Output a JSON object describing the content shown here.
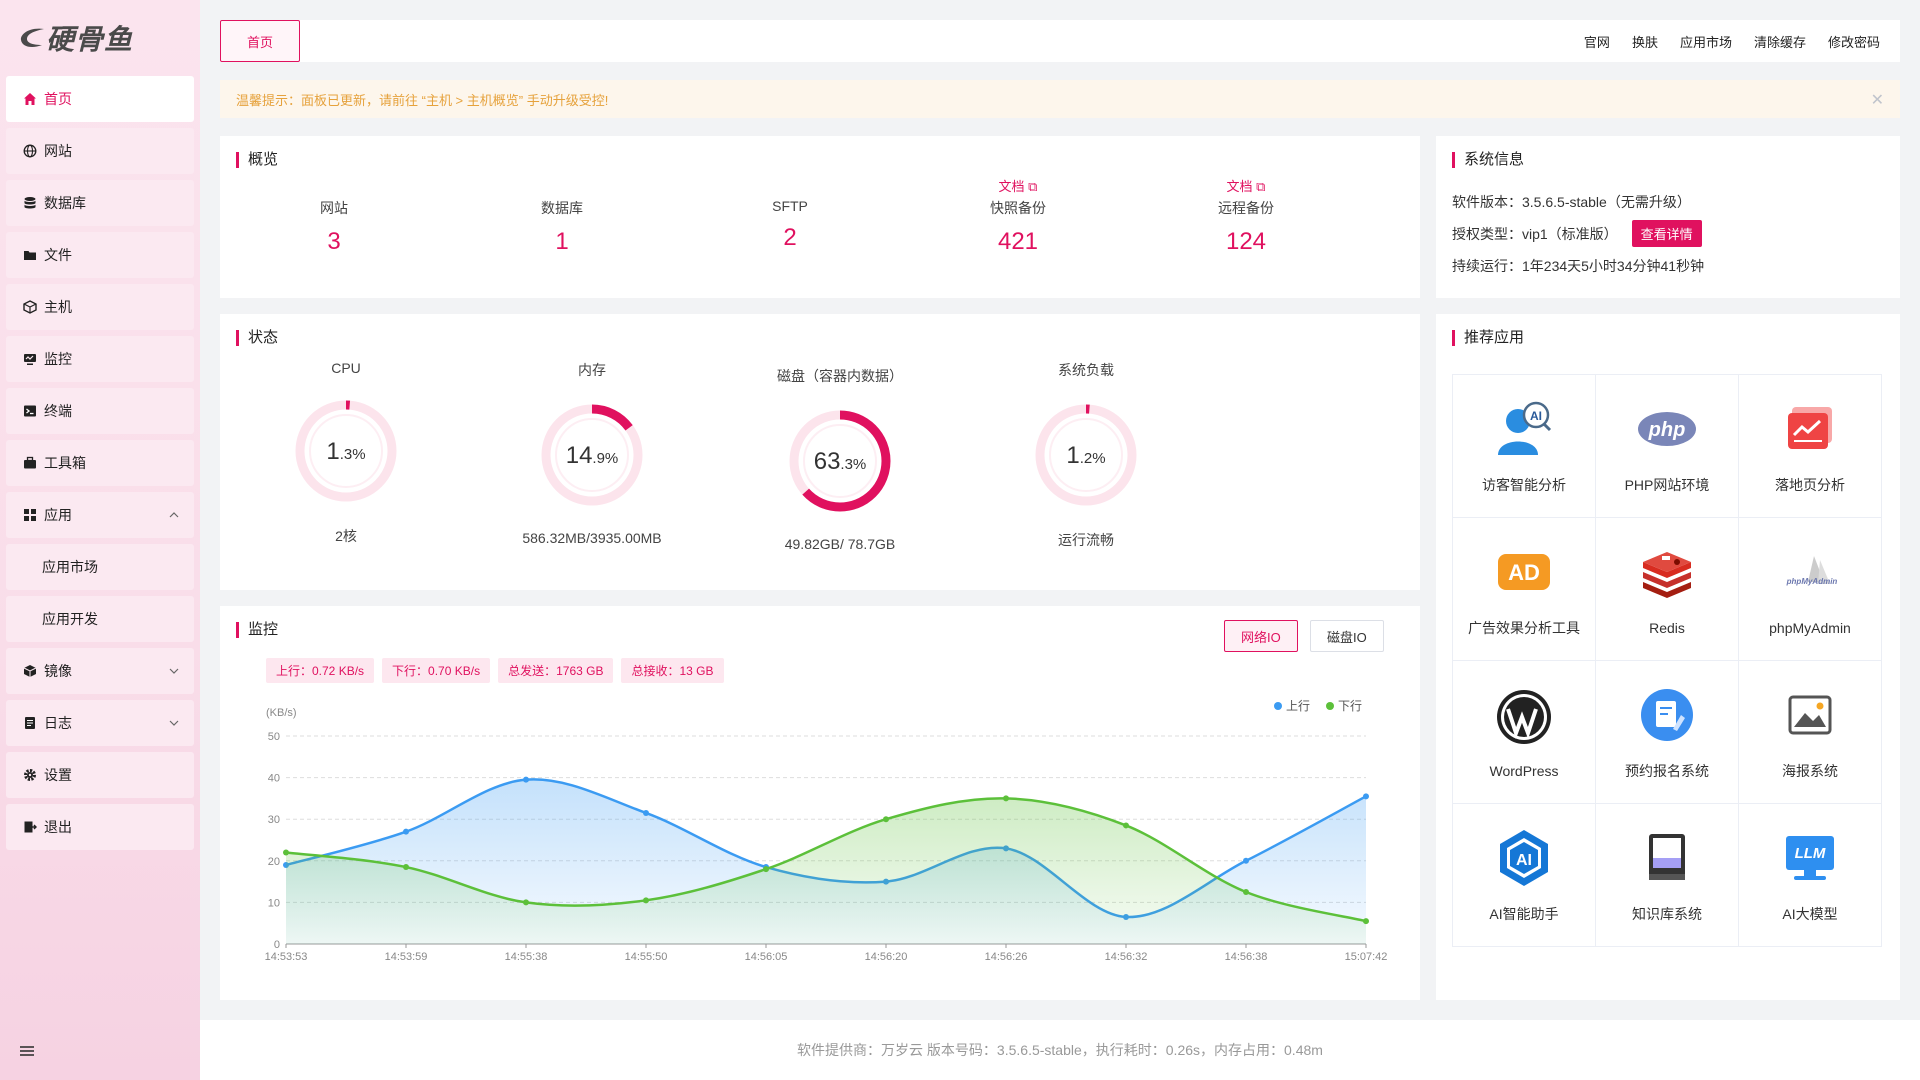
{
  "logo": {
    "text": "硬骨鱼"
  },
  "sidebar": {
    "items": [
      {
        "label": "首页",
        "icon": "home-icon",
        "active": true
      },
      {
        "label": "网站",
        "icon": "globe-icon"
      },
      {
        "label": "数据库",
        "icon": "database-icon"
      },
      {
        "label": "文件",
        "icon": "folder-icon"
      },
      {
        "label": "主机",
        "icon": "server-icon"
      },
      {
        "label": "监控",
        "icon": "monitor-icon"
      },
      {
        "label": "终端",
        "icon": "terminal-icon"
      },
      {
        "label": "工具箱",
        "icon": "toolbox-icon"
      },
      {
        "label": "应用",
        "icon": "apps-icon",
        "expanded": true
      },
      {
        "label": "应用市场",
        "sub": true
      },
      {
        "label": "应用开发",
        "sub": true
      },
      {
        "label": "镜像",
        "icon": "image-box-icon"
      },
      {
        "label": "日志",
        "icon": "log-icon"
      },
      {
        "label": "设置",
        "icon": "gear-icon"
      },
      {
        "label": "退出",
        "icon": "logout-icon"
      }
    ]
  },
  "topbar": {
    "tab": "首页",
    "links": [
      "官网",
      "换肤",
      "应用市场",
      "清除缓存",
      "修改密码"
    ]
  },
  "notice": {
    "text": "温馨提示：面板已更新，请前往 “主机 > 主机概览” 手动升级受控!"
  },
  "overview": {
    "title": "概览",
    "doc_label": "文档",
    "items": [
      {
        "label": "网站",
        "value": "3"
      },
      {
        "label": "数据库",
        "value": "1"
      },
      {
        "label": "SFTP",
        "value": "2"
      },
      {
        "label": "快照备份",
        "value": "421"
      },
      {
        "label": "远程备份",
        "value": "124"
      }
    ]
  },
  "sysinfo": {
    "title": "系统信息",
    "version": "软件版本：3.5.6.5-stable（无需升级）",
    "license": "授权类型：vip1（标准版）",
    "detail_button": "查看详情",
    "uptime": "持续运行：1年234天5小时34分钟41秒钟"
  },
  "status": {
    "title": "状态",
    "gauges": [
      {
        "label": "CPU",
        "value_main": "1",
        "value_dec": ".3",
        "percent": 1.3,
        "sub": "2核"
      },
      {
        "label": "内存",
        "value_main": "14",
        "value_dec": ".9",
        "percent": 14.9,
        "sub": "586.32MB/3935.00MB"
      },
      {
        "label": "磁盘（容器内数据）",
        "value_main": "63",
        "value_dec": ".3",
        "percent": 63.3,
        "sub": "49.82GB/ 78.7GB"
      },
      {
        "label": "系统负载",
        "value_main": "1",
        "value_dec": ".2",
        "percent": 1.2,
        "sub": "运行流畅"
      }
    ],
    "percent_sign": "%"
  },
  "monitor": {
    "title": "监控",
    "buttons": [
      "网络IO",
      "磁盘IO"
    ],
    "tags": [
      "上行：0.72 KB/s",
      "下行：0.70 KB/s",
      "总发送：1763 GB",
      "总接收：13 GB"
    ]
  },
  "chart_data": {
    "type": "area",
    "ylabel": "(KB/s)",
    "ylim": [
      0,
      50
    ],
    "yticks": [
      0,
      10,
      20,
      30,
      40,
      50
    ],
    "categories": [
      "14:53:53",
      "14:53:59",
      "14:55:38",
      "14:55:50",
      "14:56:05",
      "14:56:20",
      "14:56:26",
      "14:56:32",
      "14:56:38",
      "15:07:42"
    ],
    "series": [
      {
        "name": "上行",
        "color": "#3b9bf2",
        "values": [
          19,
          27,
          39.5,
          31.5,
          18.5,
          15,
          23,
          6.5,
          20,
          35.5
        ]
      },
      {
        "name": "下行",
        "color": "#5cc03a",
        "values": [
          22,
          18.5,
          10,
          10.5,
          18,
          30,
          35,
          28.5,
          12.5,
          5.5
        ]
      }
    ],
    "legend": "top-right",
    "grid": true
  },
  "apps": {
    "title": "推荐应用",
    "items": [
      {
        "name": "访客智能分析",
        "icon": "visitor-ai-icon",
        "badge": "AI"
      },
      {
        "name": "PHP网站环境",
        "icon": "php-icon",
        "badge": "php"
      },
      {
        "name": "落地页分析",
        "icon": "landing-chart-icon"
      },
      {
        "name": "广告效果分析工具",
        "icon": "ad-icon",
        "badge": "AD"
      },
      {
        "name": "Redis",
        "icon": "redis-icon"
      },
      {
        "name": "phpMyAdmin",
        "icon": "phpmyadmin-icon",
        "badge": "phpMyAdmin"
      },
      {
        "name": "WordPress",
        "icon": "wordpress-icon"
      },
      {
        "name": "预约报名系统",
        "icon": "reservation-icon"
      },
      {
        "name": "海报系统",
        "icon": "poster-icon"
      },
      {
        "name": "AI智能助手",
        "icon": "ai-assistant-icon",
        "badge": "AI"
      },
      {
        "name": "知识库系统",
        "icon": "knowledge-base-icon"
      },
      {
        "name": "AI大模型",
        "icon": "llm-icon",
        "badge": "LLM"
      }
    ]
  },
  "footer": {
    "text": "软件提供商：万岁云   版本号码：3.5.6.5-stable，执行耗时：0.26s，内存占用：0.48m"
  },
  "colors": {
    "accent": "#e0115f",
    "up": "#3b9bf2",
    "down": "#5cc03a"
  }
}
